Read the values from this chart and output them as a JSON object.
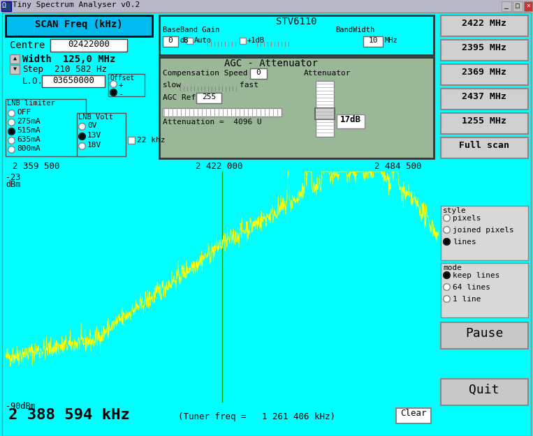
{
  "bg_color": "#00FFFF",
  "title_bar_bg": "#C0C0C0",
  "title_text": "Tiny Spectrum Analyser v0.2",
  "spectrum_bg": "#000000",
  "spectrum_line_color": "#FFFF00",
  "spectrum_center_line_color": "#008000",
  "freq_left": "2 359 500",
  "freq_center": "2 422 000",
  "freq_right": "2 484 500",
  "y_top_label": "-23",
  "y_top_unit": "dBm",
  "y_bottom_label": "-90dBm",
  "status_freq": "2 388 594 kHz",
  "status_tuner": "(Tuner freq =   1 261 406 kHz)",
  "centre_value": "02422000",
  "width_value": "125,0 MHz",
  "step_value": "210 582 Hz",
  "lo_value": "03650000",
  "attenuation_label": "17dB",
  "agc_ref_value": "255",
  "comp_speed_value": "0",
  "bandwidth_value": "10",
  "baseband_gain_value": "0",
  "buttons_right": [
    "2422 MHz",
    "2395 MHz",
    "2369 MHz",
    "2437 MHz",
    "1255 MHz",
    "Full scan"
  ],
  "style_options": [
    "pixels",
    "joined pixels",
    "lines"
  ],
  "style_selected": "lines",
  "mode_options": [
    "keep lines",
    "64 lines",
    "1 line"
  ],
  "mode_selected": "keep lines",
  "lnb_limiter_options": [
    "OFF",
    "275mA",
    "515mA",
    "635mA",
    "800mA"
  ],
  "lnb_limiter_selected": "515mA",
  "lnb_volt_options": [
    "0V",
    "13V",
    "18V"
  ],
  "lnb_volt_selected": "13V"
}
